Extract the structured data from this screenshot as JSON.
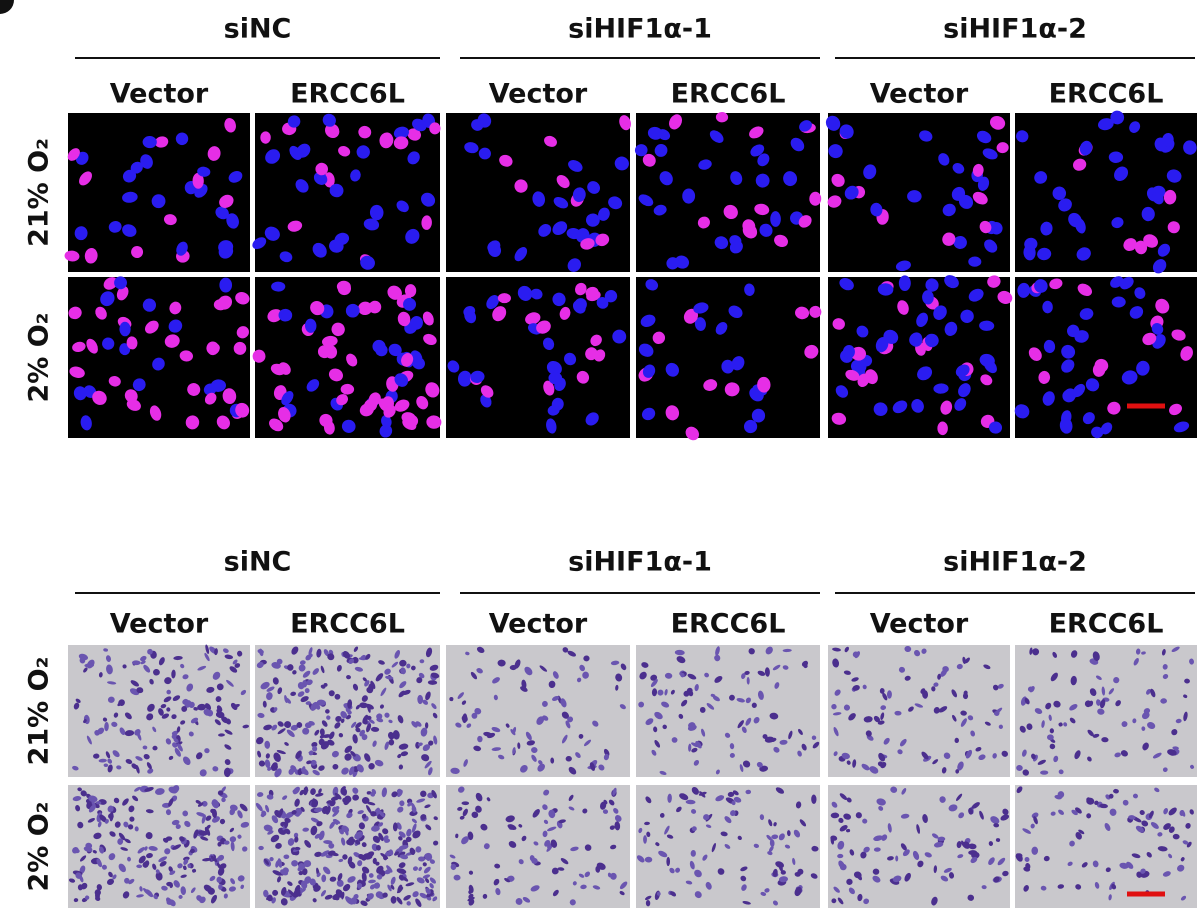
{
  "panels": [
    {
      "groups": [
        {
          "label": "siNC",
          "columns": [
            "Vector",
            "ERCC6L"
          ]
        },
        {
          "label": "siHIF1α-1",
          "columns": [
            "Vector",
            "ERCC6L"
          ]
        },
        {
          "label": "siHIF1α-2",
          "columns": [
            "Vector",
            "ERCC6L"
          ]
        }
      ],
      "rows": [
        "21% O₂",
        "2% O₂"
      ]
    },
    {
      "groups": [
        {
          "label": "siNC",
          "columns": [
            "Vector",
            "ERCC6L"
          ]
        },
        {
          "label": "siHIF1α-1",
          "columns": [
            "Vector",
            "ERCC6L"
          ]
        },
        {
          "label": "siHIF1α-2",
          "columns": [
            "Vector",
            "ERCC6L"
          ]
        }
      ],
      "rows": [
        "21% O₂",
        "2% O₂"
      ]
    }
  ]
}
